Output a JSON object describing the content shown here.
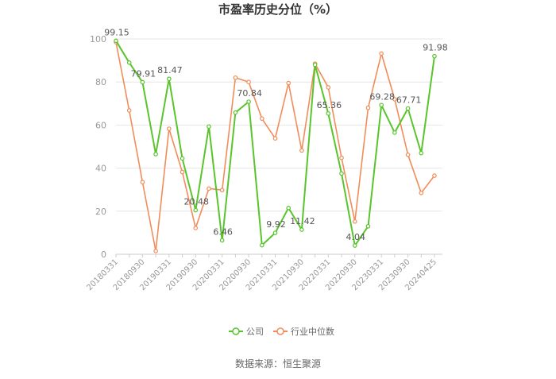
{
  "chart_data": {
    "type": "line",
    "title": "市盈率历史分位（%）",
    "source": "数据来源：恒生聚源",
    "ylim": [
      0,
      100
    ],
    "yticks": [
      0,
      20,
      40,
      60,
      80,
      100
    ],
    "grid": true,
    "legend_position": "bottom-center",
    "categories": [
      "20180331",
      "20180630",
      "20180930",
      "20181231",
      "20190331",
      "20190630",
      "20190930",
      "20191231",
      "20200331",
      "20200630",
      "20200930",
      "20201231",
      "20210331",
      "20210630",
      "20210930",
      "20211231",
      "20220331",
      "20220630",
      "20220930",
      "20221231",
      "20230331",
      "20230630",
      "20230930",
      "20231231",
      "20240425"
    ],
    "xtick_labels": [
      "20180331",
      "20180930",
      "20190331",
      "20190930",
      "20200331",
      "20200930",
      "20210331",
      "20210930",
      "20220331",
      "20220930",
      "20230331",
      "20230930",
      "20240425"
    ],
    "series": [
      {
        "name": "公司",
        "color": "#5ac42d",
        "values": [
          99.15,
          89,
          79.91,
          46.5,
          81.47,
          44.5,
          20.48,
          59.3,
          6.46,
          65.8,
          70.84,
          4.2,
          9.92,
          21.5,
          11.42,
          88.0,
          65.36,
          37.5,
          4.04,
          13.0,
          69.28,
          56.5,
          67.71,
          47.0,
          91.98
        ],
        "labels": {
          "0": "99.15",
          "2": "79.91",
          "4": "81.47",
          "6": "20.48",
          "8": "6.46",
          "10": "70.84",
          "12": "9.92",
          "14": "11.42",
          "16": "65.36",
          "18": "4.04",
          "20": "69.28",
          "22": "67.71",
          "24": "91.98"
        }
      },
      {
        "name": "行业中位数",
        "color": "#f28c5a",
        "values": [
          98.5,
          66.8,
          33.5,
          1.5,
          58.3,
          38.2,
          12.2,
          30.5,
          29.8,
          82.0,
          80.0,
          63.0,
          53.8,
          79.5,
          48.2,
          88.5,
          77.5,
          44.8,
          15.2,
          68.0,
          93.2,
          72.0,
          46.2,
          28.5,
          36.5
        ]
      }
    ]
  }
}
